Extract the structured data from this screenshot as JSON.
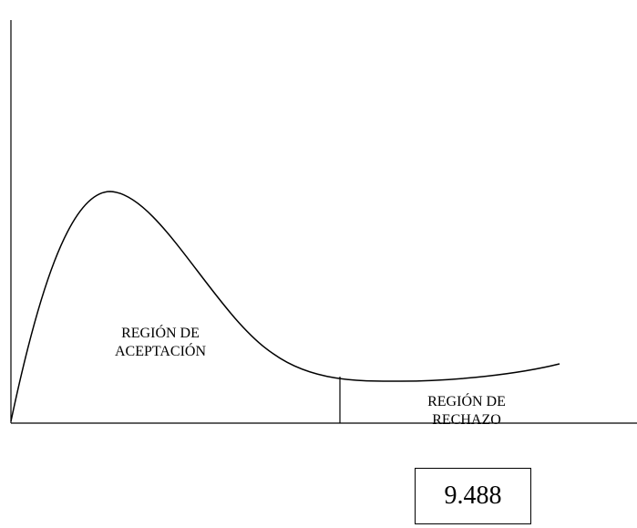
{
  "acceptance_region": {
    "line1": "REGIÓN DE",
    "line2": "ACEPTACIÓN"
  },
  "rejection_region": {
    "line1": "REGIÓN DE",
    "line2": "RECHAZO"
  },
  "critical_value": "9.488",
  "colors": {
    "stroke": "#000000",
    "background": "#ffffff"
  }
}
